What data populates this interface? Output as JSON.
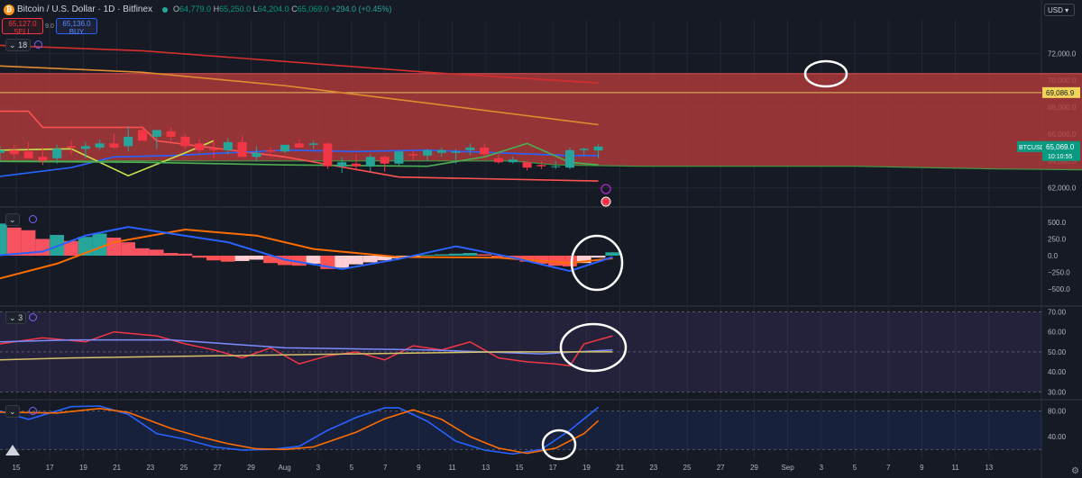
{
  "header": {
    "symbol_title": "Bitcoin / U.S. Dollar · 1D · Bitfinex",
    "coin_icon": "bitcoin-icon",
    "ohlc": {
      "o_label": "O",
      "o": "64,779.0",
      "h_label": "H",
      "h": "65,250.0",
      "l_label": "L",
      "l": "64,204.0",
      "c_label": "C",
      "c": "65,069.0",
      "change": "+294.0 (+0.45%)"
    },
    "sell_price": "65,127.0",
    "sell_label": "SELL",
    "buy_price": "65,136.0",
    "buy_label": "BUY",
    "spread": "9.0",
    "currency_button": "USD ▾",
    "indicator_count": "18"
  },
  "colors": {
    "bg": "#161a25",
    "up": "#26a69a",
    "down": "#f23645",
    "grid": "#232733",
    "cloud": "#b03a3c"
  },
  "panels": {
    "macd_label": "",
    "rsi_count": "3",
    "stoch_label": "",
    "settings_icon": "gear-icon"
  },
  "chart_data": [
    {
      "type": "candlestick",
      "title": "Bitcoin / U.S. Dollar · 1D · Bitfinex",
      "ylim": [
        60700,
        73300
      ],
      "y_ticks": [
        62000,
        64000,
        66000,
        68000,
        70000,
        72000
      ],
      "y_tick_labels": [
        "62,000.0",
        "64,000.0",
        "66,000.0",
        "68,000.0",
        "70,000.0",
        "72,000.0"
      ],
      "current_price_label": "65,069.0",
      "current_price_symbol": "BTCUSD",
      "countdown": "10:10:55",
      "highlight_price": 69086.9,
      "highlight_price_label": "69,086.9",
      "x_tick_labels": [
        "15",
        "17",
        "19",
        "21",
        "23",
        "25",
        "27",
        "29",
        "Aug",
        "3",
        "5",
        "7",
        "9",
        "11",
        "13",
        "15",
        "17",
        "19",
        "21",
        "23",
        "25",
        "27",
        "29",
        "Sep",
        "3",
        "5",
        "7",
        "9",
        "11",
        "13"
      ],
      "candles": [
        {
          "o": 64600,
          "h": 65100,
          "l": 63900,
          "c": 64800
        },
        {
          "o": 64800,
          "h": 65200,
          "l": 64100,
          "c": 64500
        },
        {
          "o": 64700,
          "h": 65400,
          "l": 64200,
          "c": 64200
        },
        {
          "o": 64300,
          "h": 65000,
          "l": 63700,
          "c": 64000
        },
        {
          "o": 64200,
          "h": 65200,
          "l": 63800,
          "c": 64900
        },
        {
          "o": 65100,
          "h": 65500,
          "l": 64500,
          "c": 65000
        },
        {
          "o": 64900,
          "h": 65400,
          "l": 64200,
          "c": 65100
        },
        {
          "o": 65000,
          "h": 65600,
          "l": 64800,
          "c": 65300
        },
        {
          "o": 65300,
          "h": 66000,
          "l": 64900,
          "c": 65000
        },
        {
          "o": 65100,
          "h": 66600,
          "l": 64700,
          "c": 65800
        },
        {
          "o": 66300,
          "h": 66600,
          "l": 65500,
          "c": 65500
        },
        {
          "o": 65800,
          "h": 66200,
          "l": 64900,
          "c": 66300
        },
        {
          "o": 66200,
          "h": 66500,
          "l": 65500,
          "c": 65800
        },
        {
          "o": 65800,
          "h": 66000,
          "l": 64900,
          "c": 65100
        },
        {
          "o": 65300,
          "h": 65600,
          "l": 64600,
          "c": 64800
        },
        {
          "o": 64900,
          "h": 65600,
          "l": 64200,
          "c": 64800
        },
        {
          "o": 64800,
          "h": 65700,
          "l": 64500,
          "c": 65400
        },
        {
          "o": 65400,
          "h": 65900,
          "l": 64300,
          "c": 64300
        },
        {
          "o": 64300,
          "h": 65100,
          "l": 64000,
          "c": 64600
        },
        {
          "o": 64800,
          "h": 65000,
          "l": 64300,
          "c": 64700
        },
        {
          "o": 64700,
          "h": 65200,
          "l": 64600,
          "c": 65200
        },
        {
          "o": 65300,
          "h": 65600,
          "l": 65000,
          "c": 65000
        },
        {
          "o": 65200,
          "h": 65500,
          "l": 64900,
          "c": 65300
        },
        {
          "o": 65300,
          "h": 65400,
          "l": 63400,
          "c": 63600
        },
        {
          "o": 63600,
          "h": 64300,
          "l": 63100,
          "c": 63900
        },
        {
          "o": 63800,
          "h": 64500,
          "l": 63300,
          "c": 63600
        },
        {
          "o": 63600,
          "h": 64500,
          "l": 63200,
          "c": 64300
        },
        {
          "o": 64300,
          "h": 64400,
          "l": 63200,
          "c": 63800
        },
        {
          "o": 63800,
          "h": 64800,
          "l": 63600,
          "c": 64700
        },
        {
          "o": 64500,
          "h": 64800,
          "l": 64000,
          "c": 64400
        },
        {
          "o": 64400,
          "h": 64900,
          "l": 64000,
          "c": 64800
        },
        {
          "o": 64600,
          "h": 65000,
          "l": 64300,
          "c": 64800
        },
        {
          "o": 64600,
          "h": 64900,
          "l": 63800,
          "c": 64700
        },
        {
          "o": 64800,
          "h": 65300,
          "l": 64400,
          "c": 65000
        },
        {
          "o": 65000,
          "h": 65300,
          "l": 64300,
          "c": 64500
        },
        {
          "o": 64200,
          "h": 64500,
          "l": 63800,
          "c": 63900
        },
        {
          "o": 63900,
          "h": 64300,
          "l": 63800,
          "c": 64100
        },
        {
          "o": 63900,
          "h": 64000,
          "l": 63300,
          "c": 63500
        },
        {
          "o": 63700,
          "h": 64000,
          "l": 63400,
          "c": 63600
        },
        {
          "o": 63600,
          "h": 64000,
          "l": 63400,
          "c": 63600
        },
        {
          "o": 63500,
          "h": 65000,
          "l": 63400,
          "c": 64800
        },
        {
          "o": 64800,
          "h": 65000,
          "l": 64400,
          "c": 64900
        },
        {
          "o": 64779,
          "h": 65250,
          "l": 64204,
          "c": 65069
        }
      ],
      "cloud": {
        "top": [
          [
            0,
            70500
          ],
          [
            42,
            70500
          ],
          [
            76,
            70500
          ],
          [
            78,
            70400
          ],
          [
            80,
            70400
          ]
        ],
        "bottom": [
          [
            0,
            64000
          ],
          [
            36,
            64000
          ],
          [
            39,
            63700
          ],
          [
            45,
            63600
          ],
          [
            60,
            63600
          ],
          [
            70,
            63400
          ],
          [
            80,
            63300
          ]
        ]
      },
      "lines": [
        {
          "color": "#d32f2f",
          "points": [
            [
              -5,
              72800
            ],
            [
              10,
              72200
            ],
            [
              20,
              71400
            ],
            [
              30,
              70600
            ],
            [
              42,
              69800
            ]
          ]
        },
        {
          "color": "#e08b2f",
          "points": [
            [
              -5,
              71300
            ],
            [
              10,
              70600
            ],
            [
              20,
              69600
            ],
            [
              30,
              68300
            ],
            [
              42,
              66700
            ]
          ]
        },
        {
          "color": "#ff5252",
          "points": [
            [
              -5,
              67700
            ],
            [
              2,
              67700
            ],
            [
              3,
              66500
            ],
            [
              10,
              66500
            ],
            [
              11,
              65500
            ],
            [
              20,
              64300
            ],
            [
              28,
              62800
            ],
            [
              42,
              62500
            ]
          ]
        },
        {
          "color": "#2962ff",
          "points": [
            [
              -5,
              62200
            ],
            [
              5,
              63500
            ],
            [
              8,
              64300
            ],
            [
              12,
              64400
            ],
            [
              20,
              64800
            ],
            [
              25,
              64700
            ],
            [
              30,
              64800
            ],
            [
              40,
              64400
            ],
            [
              42,
              64400
            ]
          ]
        },
        {
          "color": "#c6e148",
          "points": [
            [
              -5,
              64700
            ],
            [
              5,
              64900
            ],
            [
              9,
              62900
            ],
            [
              13,
              64600
            ],
            [
              15,
              65500
            ]
          ]
        },
        {
          "color": "#4caf50",
          "points": [
            [
              -5,
              64000
            ],
            [
              10,
              63900
            ],
            [
              20,
              63700
            ],
            [
              30,
              63600
            ],
            [
              34,
              64300
            ],
            [
              37,
              65300
            ],
            [
              40,
              63900
            ],
            [
              42,
              63700
            ]
          ]
        }
      ]
    },
    {
      "type": "bar",
      "name": "MACD panel",
      "ylim": [
        -700,
        700
      ],
      "y_ticks": [
        -500,
        -250,
        0,
        250,
        500
      ],
      "y_tick_labels": [
        "−500.0",
        "−250.0",
        "0.0",
        "250.0",
        "500.0"
      ],
      "histogram": [
        480,
        420,
        380,
        250,
        310,
        220,
        280,
        330,
        270,
        200,
        110,
        90,
        40,
        30,
        -30,
        -70,
        -90,
        -80,
        -60,
        -110,
        -140,
        -150,
        -120,
        -200,
        -180,
        -130,
        -100,
        -70,
        -40,
        -20,
        10,
        20,
        30,
        40,
        20,
        -20,
        -50,
        -90,
        -120,
        -150,
        -160,
        -110,
        -30,
        50
      ],
      "macd_line": [
        [
          -2,
          -30
        ],
        [
          3,
          60
        ],
        [
          6,
          300
        ],
        [
          9,
          430
        ],
        [
          12,
          330
        ],
        [
          16,
          200
        ],
        [
          20,
          -60
        ],
        [
          24,
          -200
        ],
        [
          28,
          -50
        ],
        [
          32,
          140
        ],
        [
          36,
          -30
        ],
        [
          40,
          -230
        ],
        [
          43,
          -20
        ]
      ],
      "signal_line": [
        [
          -2,
          -450
        ],
        [
          4,
          -120
        ],
        [
          8,
          200
        ],
        [
          13,
          390
        ],
        [
          18,
          300
        ],
        [
          22,
          100
        ],
        [
          28,
          -20
        ],
        [
          35,
          -30
        ],
        [
          40,
          -110
        ],
        [
          43,
          -40
        ]
      ],
      "macd_color": "#2962ff",
      "signal_color": "#ff6d00"
    },
    {
      "type": "line",
      "name": "RSI panel",
      "ylim": [
        27,
        72
      ],
      "y_ticks": [
        30,
        40,
        50,
        60,
        70
      ],
      "y_tick_labels": [
        "30.00",
        "40.00",
        "50.00",
        "60.00",
        "70.00"
      ],
      "band": [
        30,
        70
      ],
      "series": [
        {
          "color": "#f23645",
          "points": [
            [
              -5,
              55
            ],
            [
              0,
              54
            ],
            [
              3,
              57
            ],
            [
              6,
              55
            ],
            [
              8,
              60
            ],
            [
              11,
              58
            ],
            [
              13,
              54
            ],
            [
              15,
              51
            ],
            [
              17,
              47
            ],
            [
              19,
              52
            ],
            [
              21,
              44
            ],
            [
              23,
              48
            ],
            [
              25,
              50
            ],
            [
              27,
              46
            ],
            [
              29,
              53
            ],
            [
              31,
              51
            ],
            [
              33,
              55
            ],
            [
              35,
              47
            ],
            [
              37,
              45
            ],
            [
              39,
              44
            ],
            [
              40,
              43
            ],
            [
              41,
              54
            ],
            [
              43,
              58
            ]
          ]
        },
        {
          "color": "#7b8cff",
          "points": [
            [
              -5,
              54
            ],
            [
              5,
              56
            ],
            [
              12,
              56
            ],
            [
              20,
              52
            ],
            [
              30,
              51
            ],
            [
              38,
              49
            ],
            [
              43,
              51
            ]
          ]
        },
        {
          "color": "#d4c26a",
          "points": [
            [
              -5,
              45
            ],
            [
              5,
              47
            ],
            [
              15,
              48
            ],
            [
              25,
              49
            ],
            [
              35,
              50
            ],
            [
              43,
              50
            ]
          ]
        }
      ]
    },
    {
      "type": "line",
      "name": "Stochastic panel",
      "ylim": [
        5,
        95
      ],
      "y_ticks": [
        40,
        80
      ],
      "y_tick_labels": [
        "40.00",
        "80.00"
      ],
      "band": [
        20,
        80
      ],
      "series": [
        {
          "color": "#2962ff",
          "points": [
            [
              -5,
              82
            ],
            [
              0,
              80
            ],
            [
              2,
              67
            ],
            [
              5,
              87
            ],
            [
              7,
              88
            ],
            [
              9,
              75
            ],
            [
              11,
              45
            ],
            [
              13,
              36
            ],
            [
              15,
              24
            ],
            [
              17,
              19
            ],
            [
              19,
              20
            ],
            [
              21,
              25
            ],
            [
              23,
              50
            ],
            [
              25,
              70
            ],
            [
              27,
              85
            ],
            [
              28,
              85
            ],
            [
              30,
              64
            ],
            [
              32,
              33
            ],
            [
              34,
              19
            ],
            [
              36,
              13
            ],
            [
              38,
              20
            ],
            [
              40,
              50
            ],
            [
              42,
              86
            ]
          ]
        },
        {
          "color": "#ff6d00",
          "points": [
            [
              -5,
              80
            ],
            [
              1,
              78
            ],
            [
              4,
              77
            ],
            [
              7,
              84
            ],
            [
              9,
              78
            ],
            [
              12,
              53
            ],
            [
              14,
              40
            ],
            [
              16,
              29
            ],
            [
              18,
              21
            ],
            [
              20,
              20
            ],
            [
              22,
              24
            ],
            [
              25,
              47
            ],
            [
              27,
              68
            ],
            [
              29,
              82
            ],
            [
              31,
              67
            ],
            [
              33,
              40
            ],
            [
              35,
              22
            ],
            [
              37,
              14
            ],
            [
              39,
              22
            ],
            [
              41,
              45
            ],
            [
              42,
              65
            ]
          ]
        }
      ]
    }
  ],
  "annotations": [
    {
      "name": "circle-cloud-top"
    },
    {
      "name": "circle-macd-cross"
    },
    {
      "name": "circle-rsi-cross"
    },
    {
      "name": "circle-stoch-cross"
    }
  ]
}
